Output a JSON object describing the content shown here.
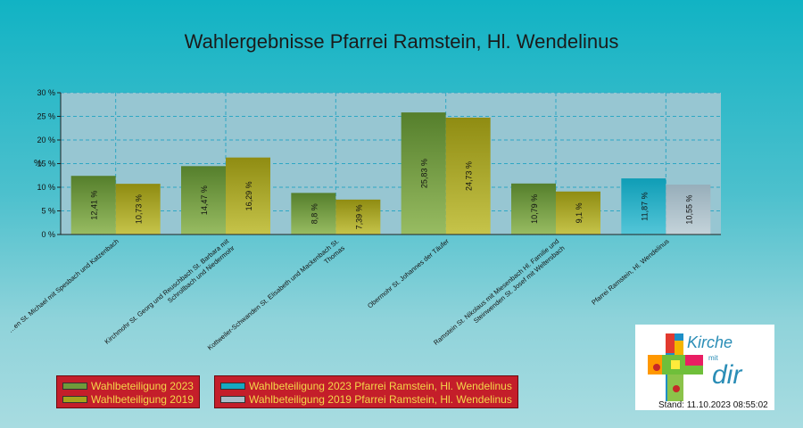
{
  "colors": {
    "wahl2023": "#6f9a3b",
    "wahl2019": "#a6a31c",
    "pfarrei2023": "#16a9c2",
    "pfarrei2019": "#a8bec9"
  },
  "legend_left": [
    {
      "label": "Wahlbeteiligung 2023",
      "color": "#6f9a3b"
    },
    {
      "label": "Wahlbeteiligung 2019",
      "color": "#a6a31c"
    }
  ],
  "legend_right": [
    {
      "label": "Wahlbeteiligung 2023 Pfarrei Ramstein, Hl. Wendelinus",
      "color": "#16a9c2"
    },
    {
      "label": "Wahlbeteiligung 2019 Pfarrei Ramstein, Hl. Wendelinus",
      "color": "#a8bec9"
    }
  ],
  "logo": {
    "word1": "Kirche",
    "word2": "mit",
    "word3": "dir"
  },
  "stand": "Stand: 11.10.2023 08:55:02",
  "chart_data": {
    "type": "bar",
    "title": "Wahlergebnisse Pfarrei Ramstein, Hl. Wendelinus",
    "ylabel": "%",
    "ylim": [
      0,
      30
    ],
    "yticks": [
      "0 %",
      "5 %",
      "10 %",
      "15 %",
      "20 %",
      "25 %",
      "30 %"
    ],
    "grid": true,
    "categories": [
      "…en St. Michael mit Spesbach und Katzenbach",
      "Kirchmohr St. Georg und Reuschbach St. Barbara mit Schrollbach und Niedermohr",
      "Kottweiler-Schwanden St. Elisabeth und Mackenbach St. Thomas",
      "Obermohr St. Johannes der Täufer",
      "Ramstein St. Nikolaus mit Miesenbach Hl. Familie und Steinwenden St. Josef mit Weltersbach",
      "Pfarrei Ramstein, Hl. Wendelinus"
    ],
    "series": [
      {
        "name": "Wahlbeteiligung 2023",
        "values": [
          12.41,
          14.47,
          8.8,
          25.83,
          10.79,
          11.87
        ]
      },
      {
        "name": "Wahlbeteiligung 2019",
        "values": [
          10.73,
          16.29,
          7.39,
          24.73,
          9.1,
          10.55
        ]
      }
    ],
    "value_labels": [
      [
        "12,41 %",
        "14,47 %",
        "8,8 %",
        "25,83 %",
        "10,79 %",
        "11,87 %"
      ],
      [
        "10,73 %",
        "16,29 %",
        "7,39 %",
        "24,73 %",
        "9,1 %",
        "10,55 %"
      ]
    ],
    "legend_position": "bottom-left"
  }
}
